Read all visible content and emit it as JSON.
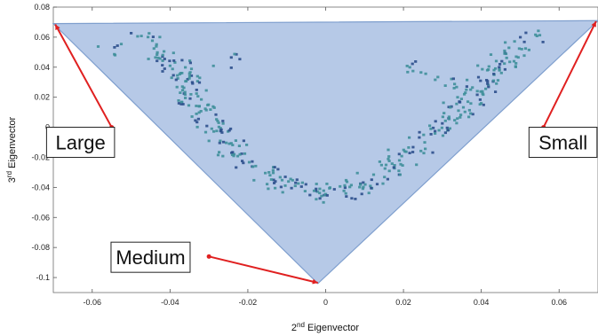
{
  "chart_data": {
    "type": "scatter",
    "title": "",
    "xlabel": {
      "prefix": "2",
      "sup": "nd",
      "suffix": " Eigenvector"
    },
    "ylabel": {
      "prefix": "3",
      "sup": "rd",
      "suffix": " Eigenvector"
    },
    "xlim": [
      -0.07,
      0.07
    ],
    "ylim": [
      -0.11,
      0.08
    ],
    "xticks": [
      -0.06,
      -0.04,
      -0.02,
      0,
      0.02,
      0.04,
      0.06
    ],
    "xtick_labels": [
      "-0.06",
      "-0.04",
      "-0.02",
      "0",
      "0.02",
      "0.04",
      "0.06"
    ],
    "yticks": [
      -0.1,
      -0.08,
      -0.06,
      -0.04,
      -0.02,
      0,
      0.02,
      0.04,
      0.06,
      0.08
    ],
    "ytick_labels": [
      "-0.1",
      "-0.08",
      "-0.06",
      "-0.04",
      "-0.02",
      "0",
      "0.02",
      "0.04",
      "0.06",
      "0.08"
    ],
    "grid": false,
    "triangle": {
      "vertices": [
        [
          -0.07,
          0.069
        ],
        [
          0.07,
          0.071
        ],
        [
          -0.002,
          -0.104
        ]
      ],
      "fill": "#a9c0e3",
      "stroke": "#7f9fce"
    },
    "point_color": "#3f8f9a",
    "point_dark_color": "#2c4f8c",
    "callout_color": "#e02020",
    "annotations": [
      {
        "label": "Large",
        "box_x": -0.063,
        "box_y": -0.01,
        "arrow_from": [
          -0.055,
          0.0
        ],
        "arrow_to": [
          -0.0695,
          0.0685
        ]
      },
      {
        "label": "Small",
        "box_x": 0.061,
        "box_y": -0.01,
        "arrow_from": [
          0.056,
          0.0
        ],
        "arrow_to": [
          0.0695,
          0.0705
        ]
      },
      {
        "label": "Medium",
        "box_x": -0.045,
        "box_y": -0.0865,
        "arrow_from": [
          -0.03,
          -0.086
        ],
        "arrow_to": [
          -0.002,
          -0.1035
        ]
      }
    ],
    "clusters": [
      {
        "x": -0.046,
        "y": 0.058,
        "n": 10
      },
      {
        "x": -0.042,
        "y": 0.048,
        "n": 14
      },
      {
        "x": -0.038,
        "y": 0.04,
        "n": 18
      },
      {
        "x": -0.036,
        "y": 0.03,
        "n": 20
      },
      {
        "x": -0.034,
        "y": 0.02,
        "n": 20
      },
      {
        "x": -0.032,
        "y": 0.01,
        "n": 18
      },
      {
        "x": -0.03,
        "y": 0.002,
        "n": 14
      },
      {
        "x": -0.028,
        "y": -0.006,
        "n": 12
      },
      {
        "x": -0.024,
        "y": -0.014,
        "n": 12
      },
      {
        "x": -0.02,
        "y": -0.022,
        "n": 12
      },
      {
        "x": -0.016,
        "y": -0.03,
        "n": 12
      },
      {
        "x": -0.012,
        "y": -0.036,
        "n": 12
      },
      {
        "x": -0.008,
        "y": -0.04,
        "n": 12
      },
      {
        "x": -0.004,
        "y": -0.043,
        "n": 10
      },
      {
        "x": 0.0,
        "y": -0.045,
        "n": 8
      },
      {
        "x": 0.004,
        "y": -0.043,
        "n": 10
      },
      {
        "x": 0.008,
        "y": -0.04,
        "n": 12
      },
      {
        "x": 0.012,
        "y": -0.035,
        "n": 12
      },
      {
        "x": 0.016,
        "y": -0.028,
        "n": 12
      },
      {
        "x": 0.02,
        "y": -0.02,
        "n": 12
      },
      {
        "x": 0.024,
        "y": -0.012,
        "n": 12
      },
      {
        "x": 0.028,
        "y": -0.004,
        "n": 12
      },
      {
        "x": 0.031,
        "y": 0.004,
        "n": 14
      },
      {
        "x": 0.034,
        "y": 0.012,
        "n": 16
      },
      {
        "x": 0.037,
        "y": 0.02,
        "n": 16
      },
      {
        "x": 0.04,
        "y": 0.028,
        "n": 16
      },
      {
        "x": 0.043,
        "y": 0.036,
        "n": 16
      },
      {
        "x": 0.046,
        "y": 0.044,
        "n": 14
      },
      {
        "x": 0.049,
        "y": 0.052,
        "n": 12
      },
      {
        "x": 0.052,
        "y": 0.06,
        "n": 8
      },
      {
        "x": -0.055,
        "y": 0.05,
        "n": 6
      },
      {
        "x": -0.025,
        "y": 0.045,
        "n": 6
      },
      {
        "x": 0.022,
        "y": 0.04,
        "n": 8
      },
      {
        "x": 0.03,
        "y": 0.03,
        "n": 8
      }
    ]
  }
}
